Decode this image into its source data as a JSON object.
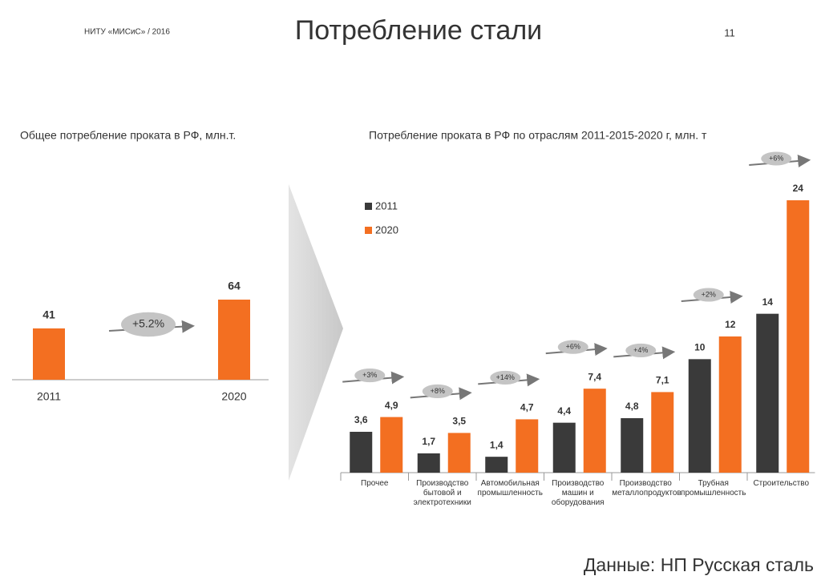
{
  "header": {
    "org": "НИТУ «МИСиС» / 2016",
    "title": "Потребление стали",
    "page": "11"
  },
  "footer": "Данные: НП Русская сталь",
  "chart_data": [
    {
      "type": "bar",
      "title": "Общее потребление проката в РФ, млн.т.",
      "categories": [
        "2011",
        "2020"
      ],
      "values": [
        41,
        64
      ],
      "color": "#f36f21",
      "growth_label": "+5.2%"
    },
    {
      "type": "grouped_bar",
      "title": "Потребление проката в РФ по отраслям 2011-2015-2020 г, млн. т",
      "categories": [
        "Прочее",
        "Производство бытовой и электротехники",
        "Автомобильная промышленность",
        "Производство машин и оборудования",
        "Производство металлопродуктов",
        "Трубная промышленность",
        "Строительство"
      ],
      "series": [
        {
          "name": "2011",
          "color": "#3a3a3a",
          "values": [
            3.6,
            1.7,
            1.4,
            4.4,
            4.8,
            10,
            14
          ],
          "value_labels": [
            "3,6",
            "1,7",
            "1,4",
            "4,4",
            "4,8",
            "10",
            "14"
          ]
        },
        {
          "name": "2020",
          "color": "#f36f21",
          "values": [
            4.9,
            3.5,
            4.7,
            7.4,
            7.1,
            12,
            24
          ],
          "value_labels": [
            "4,9",
            "3,5",
            "4,7",
            "7,4",
            "7,1",
            "12",
            "24"
          ]
        }
      ],
      "growth_labels": [
        "+3%",
        "+8%",
        "+14%",
        "+6%",
        "+4%",
        "+2%",
        "+6%"
      ],
      "legend": "upper-left"
    }
  ]
}
